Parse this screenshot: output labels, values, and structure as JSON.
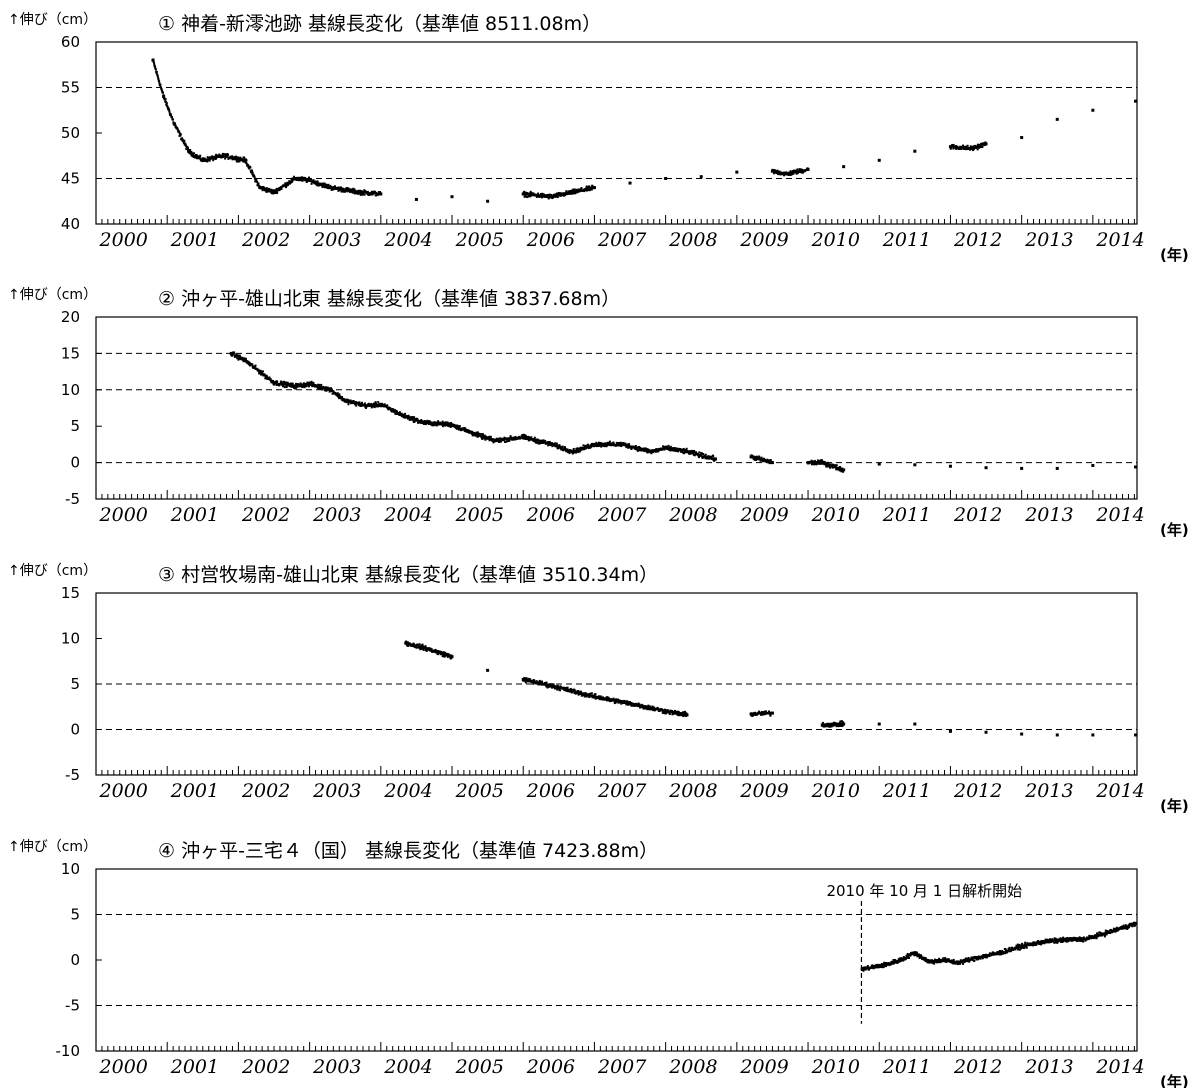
{
  "chart_data": [
    {
      "type": "scatter",
      "title": "① 神着-新澪池跡 基線長変化（基準値 8511.08m）",
      "ylabel": "↑伸び（cm）",
      "xunit": "(年)",
      "xlim": [
        2000,
        2014.62
      ],
      "ylim": [
        40,
        60
      ],
      "yticks": [
        40,
        45,
        50,
        55,
        60
      ],
      "ytick_labels": [
        "40",
        "45",
        "50",
        "55",
        "60"
      ],
      "dashed_y": [
        45,
        55
      ],
      "xticks": [
        "2000",
        "2001",
        "2002",
        "2003",
        "2004",
        "2005",
        "2006",
        "2007",
        "2008",
        "2009",
        "2010",
        "2011",
        "2012",
        "2013",
        "2014"
      ],
      "series": [
        {
          "x": [
            2000.8,
            2000.95,
            2001.1,
            2001.3,
            2001.5,
            2001.8,
            2002.1,
            2002.3,
            2002.5,
            2002.8,
            2003.0,
            2003.3,
            2003.7,
            2004.0,
            2004.5,
            2005.0,
            2005.5,
            2006.0,
            2006.4,
            2006.7,
            2007.0,
            2007.5,
            2008.0,
            2008.5,
            2009.0,
            2009.5,
            2009.7,
            2010.0,
            2010.5,
            2011.0,
            2011.5,
            2012.0,
            2012.3,
            2012.5,
            2013.0,
            2013.5,
            2014.0,
            2014.6
          ],
          "y": [
            58,
            54,
            51,
            48,
            47,
            47.5,
            47,
            44,
            43.5,
            45,
            44.8,
            44,
            43.5,
            43.3,
            42.7,
            43,
            42.5,
            43.3,
            43,
            43.5,
            44,
            44.5,
            45,
            45.2,
            45.7,
            45.8,
            45.5,
            46,
            46.3,
            47,
            48,
            48.5,
            48.3,
            48.8,
            49.5,
            51.5,
            52.5,
            53.5
          ]
        }
      ]
    },
    {
      "type": "scatter",
      "title": "② 沖ヶ平-雄山北東 基線長変化（基準値 3837.68m）",
      "ylabel": "↑伸び（cm）",
      "xunit": "(年)",
      "xlim": [
        2000,
        2014.62
      ],
      "ylim": [
        -5,
        20
      ],
      "yticks": [
        -5,
        0,
        5,
        10,
        15,
        20
      ],
      "ytick_labels": [
        "-5",
        "0",
        "5",
        "10",
        "15",
        "20"
      ],
      "dashed_y": [
        0,
        10,
        15
      ],
      "xticks": [
        "2000",
        "2001",
        "2002",
        "2003",
        "2004",
        "2005",
        "2006",
        "2007",
        "2008",
        "2009",
        "2010",
        "2011",
        "2012",
        "2013",
        "2014"
      ],
      "series": [
        {
          "x": [
            2001.9,
            2002.1,
            2002.3,
            2002.5,
            2002.8,
            2003.0,
            2003.3,
            2003.5,
            2003.8,
            2004.0,
            2004.3,
            2004.6,
            2005.0,
            2005.3,
            2005.6,
            2006.0,
            2006.4,
            2006.7,
            2007.0,
            2007.4,
            2007.8,
            2008.0,
            2008.3,
            2008.7,
            2009.2,
            2009.5,
            2010.0,
            2010.2,
            2010.5,
            2011.0,
            2011.5,
            2012.0,
            2012.5,
            2013.0,
            2013.5,
            2014.0,
            2014.6
          ],
          "y": [
            15,
            14,
            12.5,
            11,
            10.5,
            10.8,
            10,
            8.5,
            7.8,
            8,
            6.5,
            5.5,
            5.2,
            4,
            3,
            3.5,
            2.5,
            1.5,
            2.5,
            2.5,
            1.5,
            2,
            1.5,
            0.5,
            0.8,
            0,
            0,
            0,
            -1,
            -0.2,
            -0.3,
            -0.5,
            -0.7,
            -0.8,
            -0.8,
            -0.4,
            -0.6
          ]
        }
      ]
    },
    {
      "type": "scatter",
      "title": "③ 村営牧場南-雄山北東 基線長変化（基準値 3510.34m）",
      "ylabel": "↑伸び（cm）",
      "xunit": "(年)",
      "xlim": [
        2000,
        2014.62
      ],
      "ylim": [
        -5,
        15
      ],
      "yticks": [
        -5,
        0,
        5,
        10,
        15
      ],
      "ytick_labels": [
        "-5",
        "0",
        "5",
        "10",
        "15"
      ],
      "dashed_y": [
        0,
        5
      ],
      "xticks": [
        "2000",
        "2001",
        "2002",
        "2003",
        "2004",
        "2005",
        "2006",
        "2007",
        "2008",
        "2009",
        "2010",
        "2011",
        "2012",
        "2013",
        "2014"
      ],
      "series": [
        {
          "x": [
            2004.35,
            2004.6,
            2005.0,
            2005.5,
            2006.0,
            2006.4,
            2006.65,
            2006.9,
            2007.2,
            2007.6,
            2008.0,
            2008.3,
            2009.2,
            2009.5,
            2010.2,
            2010.5,
            2011.0,
            2011.5,
            2012.0,
            2012.5,
            2013.0,
            2013.5,
            2014.0,
            2014.6
          ],
          "y": [
            9.5,
            9,
            8,
            6.5,
            5.5,
            4.8,
            4.3,
            3.8,
            3.3,
            2.7,
            2,
            1.6,
            1.7,
            1.8,
            0.5,
            0.6,
            0.6,
            0.6,
            -0.2,
            -0.3,
            -0.5,
            -0.6,
            -0.6,
            -0.6
          ]
        }
      ]
    },
    {
      "type": "scatter",
      "title": "④ 沖ヶ平-三宅４（国） 基線長変化（基準値 7423.88m）",
      "ylabel": "↑伸び（cm）",
      "xunit": "(年)",
      "xlim": [
        2000,
        2014.62
      ],
      "ylim": [
        -10,
        10
      ],
      "yticks": [
        -10,
        -5,
        0,
        5,
        10
      ],
      "ytick_labels": [
        "-10",
        "-5",
        "0",
        "5",
        "10"
      ],
      "dashed_y": [
        -5,
        5
      ],
      "xticks": [
        "2000",
        "2001",
        "2002",
        "2003",
        "2004",
        "2005",
        "2006",
        "2007",
        "2008",
        "2009",
        "2010",
        "2011",
        "2012",
        "2013",
        "2014"
      ],
      "annotation": {
        "text": "2010 年 10 月 1 日解析開始",
        "x": 2010.75
      },
      "series": [
        {
          "x": [
            2010.76,
            2010.9,
            2011.1,
            2011.3,
            2011.5,
            2011.7,
            2011.9,
            2012.1,
            2012.4,
            2012.7,
            2013.0,
            2013.3,
            2013.6,
            2013.9,
            2014.2,
            2014.4,
            2014.6
          ],
          "y": [
            -1,
            -0.8,
            -0.5,
            0,
            0.8,
            -0.2,
            0,
            -0.3,
            0.3,
            0.8,
            1.5,
            2,
            2.2,
            2.3,
            3,
            3.5,
            4
          ]
        }
      ]
    }
  ]
}
